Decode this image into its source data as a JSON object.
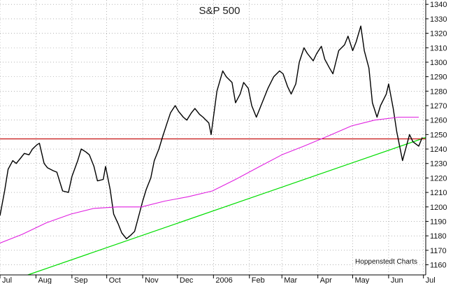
{
  "chart_data": {
    "type": "line",
    "title": "S&P 500",
    "credit": "Hoppenstedt Charts",
    "ylim": [
      1153,
      1343
    ],
    "yticks": [
      1160,
      1170,
      1180,
      1190,
      1200,
      1210,
      1220,
      1230,
      1240,
      1250,
      1260,
      1270,
      1280,
      1290,
      1300,
      1310,
      1320,
      1330,
      1340
    ],
    "x_range": [
      "2005-07-01",
      "2006-07-03"
    ],
    "xticks": [
      {
        "label": "Jul",
        "date": "2005-07-01"
      },
      {
        "label": "Aug",
        "date": "2005-08-01"
      },
      {
        "label": "Sep",
        "date": "2005-09-01"
      },
      {
        "label": "Oct",
        "date": "2005-10-01"
      },
      {
        "label": "Nov",
        "date": "2005-11-01"
      },
      {
        "label": "Dec",
        "date": "2005-12-01"
      },
      {
        "label": "2006",
        "date": "2006-01-01"
      },
      {
        "label": "Feb",
        "date": "2006-02-01"
      },
      {
        "label": "Mar",
        "date": "2006-03-01"
      },
      {
        "label": "Apr",
        "date": "2006-04-01"
      },
      {
        "label": "May",
        "date": "2006-05-01"
      },
      {
        "label": "Jun",
        "date": "2006-06-01"
      },
      {
        "label": "Jul",
        "date": "2006-07-01"
      }
    ],
    "grid": true,
    "colors": {
      "price": "#000000",
      "ma": "#e020e0",
      "horizontal": "#c00000",
      "trend": "#00dd00",
      "grid": "#888888"
    },
    "horizontal_line": {
      "value": 1247
    },
    "trendline": {
      "from": {
        "date": "2005-07-25",
        "value": 1153
      },
      "to": {
        "date": "2006-07-03",
        "value": 1248
      }
    },
    "series": [
      {
        "key": "price",
        "points": [
          [
            "2005-07-01",
            1194
          ],
          [
            "2005-07-05",
            1211
          ],
          [
            "2005-07-08",
            1226
          ],
          [
            "2005-07-12",
            1232
          ],
          [
            "2005-07-15",
            1230
          ],
          [
            "2005-07-19",
            1234
          ],
          [
            "2005-07-22",
            1237
          ],
          [
            "2005-07-26",
            1236
          ],
          [
            "2005-07-29",
            1240
          ],
          [
            "2005-08-02",
            1243
          ],
          [
            "2005-08-04",
            1244
          ],
          [
            "2005-08-08",
            1230
          ],
          [
            "2005-08-11",
            1227
          ],
          [
            "2005-08-16",
            1225
          ],
          [
            "2005-08-19",
            1224
          ],
          [
            "2005-08-24",
            1211
          ],
          [
            "2005-08-29",
            1210
          ],
          [
            "2005-09-01",
            1221
          ],
          [
            "2005-09-06",
            1232
          ],
          [
            "2005-09-09",
            1240
          ],
          [
            "2005-09-13",
            1238
          ],
          [
            "2005-09-16",
            1236
          ],
          [
            "2005-09-20",
            1228
          ],
          [
            "2005-09-23",
            1218
          ],
          [
            "2005-09-28",
            1219
          ],
          [
            "2005-09-30",
            1228
          ],
          [
            "2005-10-04",
            1212
          ],
          [
            "2005-10-07",
            1195
          ],
          [
            "2005-10-11",
            1188
          ],
          [
            "2005-10-14",
            1182
          ],
          [
            "2005-10-18",
            1178
          ],
          [
            "2005-10-21",
            1180
          ],
          [
            "2005-10-25",
            1183
          ],
          [
            "2005-10-28",
            1192
          ],
          [
            "2005-11-01",
            1204
          ],
          [
            "2005-11-04",
            1212
          ],
          [
            "2005-11-08",
            1220
          ],
          [
            "2005-11-11",
            1232
          ],
          [
            "2005-11-15",
            1240
          ],
          [
            "2005-11-18",
            1248
          ],
          [
            "2005-11-22",
            1258
          ],
          [
            "2005-11-25",
            1265
          ],
          [
            "2005-11-29",
            1270
          ],
          [
            "2005-12-02",
            1266
          ],
          [
            "2005-12-06",
            1262
          ],
          [
            "2005-12-09",
            1260
          ],
          [
            "2005-12-13",
            1265
          ],
          [
            "2005-12-16",
            1268
          ],
          [
            "2005-12-20",
            1264
          ],
          [
            "2005-12-23",
            1262
          ],
          [
            "2005-12-28",
            1258
          ],
          [
            "2005-12-30",
            1250
          ],
          [
            "2006-01-04",
            1280
          ],
          [
            "2006-01-09",
            1294
          ],
          [
            "2006-01-12",
            1290
          ],
          [
            "2006-01-17",
            1286
          ],
          [
            "2006-01-20",
            1272
          ],
          [
            "2006-01-24",
            1278
          ],
          [
            "2006-01-27",
            1286
          ],
          [
            "2006-01-31",
            1282
          ],
          [
            "2006-02-03",
            1270
          ],
          [
            "2006-02-07",
            1262
          ],
          [
            "2006-02-10",
            1268
          ],
          [
            "2006-02-14",
            1276
          ],
          [
            "2006-02-17",
            1282
          ],
          [
            "2006-02-22",
            1290
          ],
          [
            "2006-02-27",
            1294
          ],
          [
            "2006-03-02",
            1292
          ],
          [
            "2006-03-06",
            1283
          ],
          [
            "2006-03-09",
            1278
          ],
          [
            "2006-03-13",
            1285
          ],
          [
            "2006-03-16",
            1300
          ],
          [
            "2006-03-20",
            1310
          ],
          [
            "2006-03-23",
            1306
          ],
          [
            "2006-03-28",
            1301
          ],
          [
            "2006-03-31",
            1306
          ],
          [
            "2006-04-04",
            1311
          ],
          [
            "2006-04-07",
            1302
          ],
          [
            "2006-04-11",
            1296
          ],
          [
            "2006-04-14",
            1292
          ],
          [
            "2006-04-19",
            1308
          ],
          [
            "2006-04-24",
            1312
          ],
          [
            "2006-04-27",
            1318
          ],
          [
            "2006-05-01",
            1308
          ],
          [
            "2006-05-04",
            1314
          ],
          [
            "2006-05-08",
            1325
          ],
          [
            "2006-05-11",
            1308
          ],
          [
            "2006-05-15",
            1296
          ],
          [
            "2006-05-18",
            1272
          ],
          [
            "2006-05-22",
            1262
          ],
          [
            "2006-05-25",
            1270
          ],
          [
            "2006-05-30",
            1278
          ],
          [
            "2006-06-01",
            1285
          ],
          [
            "2006-06-05",
            1268
          ],
          [
            "2006-06-08",
            1252
          ],
          [
            "2006-06-13",
            1232
          ],
          [
            "2006-06-15",
            1238
          ],
          [
            "2006-06-19",
            1250
          ],
          [
            "2006-06-22",
            1245
          ],
          [
            "2006-06-27",
            1242
          ],
          [
            "2006-06-30",
            1248
          ]
        ]
      },
      {
        "key": "ma",
        "points": [
          [
            "2005-07-01",
            1175
          ],
          [
            "2005-07-20",
            1181
          ],
          [
            "2005-08-10",
            1189
          ],
          [
            "2005-08-31",
            1195
          ],
          [
            "2005-09-20",
            1199
          ],
          [
            "2005-10-10",
            1200
          ],
          [
            "2005-10-31",
            1200
          ],
          [
            "2005-11-20",
            1204
          ],
          [
            "2005-12-10",
            1207
          ],
          [
            "2005-12-31",
            1211
          ],
          [
            "2006-01-20",
            1219
          ],
          [
            "2006-02-10",
            1228
          ],
          [
            "2006-03-01",
            1236
          ],
          [
            "2006-03-20",
            1242
          ],
          [
            "2006-04-10",
            1249
          ],
          [
            "2006-04-30",
            1256
          ],
          [
            "2006-05-20",
            1260
          ],
          [
            "2006-06-10",
            1262
          ],
          [
            "2006-06-27",
            1262
          ]
        ]
      }
    ]
  }
}
